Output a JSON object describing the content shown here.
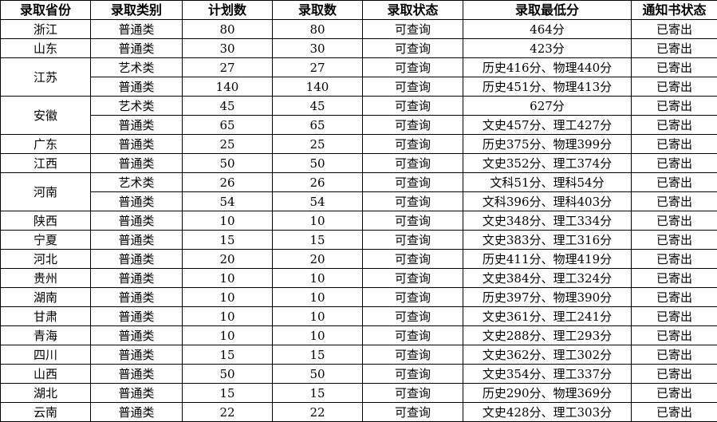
{
  "headers": [
    "录取省份",
    "录取类别",
    "计划数",
    "录取数",
    "录取状态",
    "录取最低分",
    "通知书状态"
  ],
  "groups": [
    {
      "province": "浙江",
      "rows": [
        [
          "普通类",
          "80",
          "80",
          "可查询",
          "464分",
          "已寄出"
        ]
      ]
    },
    {
      "province": "山东",
      "rows": [
        [
          "普通类",
          "30",
          "30",
          "可查询",
          "423分",
          "已寄出"
        ]
      ]
    },
    {
      "province": "江苏",
      "rows": [
        [
          "艺术类",
          "27",
          "27",
          "可查询",
          "历史416分、物理440分",
          "已寄出"
        ],
        [
          "普通类",
          "140",
          "140",
          "可查询",
          "历史451分、物理413分",
          "已寄出"
        ]
      ]
    },
    {
      "province": "安徽",
      "rows": [
        [
          "艺术类",
          "45",
          "45",
          "可查询",
          "627分",
          "已寄出"
        ],
        [
          "普通类",
          "65",
          "65",
          "可查询",
          "文史457分、理工427分",
          "已寄出"
        ]
      ]
    },
    {
      "province": "广东",
      "rows": [
        [
          "普通类",
          "25",
          "25",
          "可查询",
          "历史375分、物理399分",
          "已寄出"
        ]
      ]
    },
    {
      "province": "江西",
      "rows": [
        [
          "普通类",
          "50",
          "50",
          "可查询",
          "文史352分、理工374分",
          "已寄出"
        ]
      ]
    },
    {
      "province": "河南",
      "rows": [
        [
          "艺术类",
          "26",
          "26",
          "可查询",
          "文科51分、理科54分",
          "已寄出"
        ],
        [
          "普通类",
          "54",
          "54",
          "可查询",
          "文科396分、理科403分",
          "已寄出"
        ]
      ]
    },
    {
      "province": "陕西",
      "rows": [
        [
          "普通类",
          "10",
          "10",
          "可查询",
          "文史348分、理工334分",
          "已寄出"
        ]
      ]
    },
    {
      "province": "宁夏",
      "rows": [
        [
          "普通类",
          "15",
          "15",
          "可查询",
          "文史383分、理工316分",
          "已寄出"
        ]
      ]
    },
    {
      "province": "河北",
      "rows": [
        [
          "普通类",
          "20",
          "20",
          "可查询",
          "历史411分、物理419分",
          "已寄出"
        ]
      ]
    },
    {
      "province": "贵州",
      "rows": [
        [
          "普通类",
          "10",
          "10",
          "可查询",
          "文史384分、理工324分",
          "已寄出"
        ]
      ]
    },
    {
      "province": "湖南",
      "rows": [
        [
          "普通类",
          "10",
          "10",
          "可查询",
          "历史397分、物理390分",
          "已寄出"
        ]
      ]
    },
    {
      "province": "甘肃",
      "rows": [
        [
          "普通类",
          "10",
          "10",
          "可查询",
          "文史361分、理工241分",
          "已寄出"
        ]
      ]
    },
    {
      "province": "青海",
      "rows": [
        [
          "普通类",
          "10",
          "10",
          "可查询",
          "文史288分、理工293分",
          "已寄出"
        ]
      ]
    },
    {
      "province": "四川",
      "rows": [
        [
          "普通类",
          "15",
          "15",
          "可查询",
          "文史362分、理工302分",
          "已寄出"
        ]
      ]
    },
    {
      "province": "山西",
      "rows": [
        [
          "普通类",
          "50",
          "50",
          "可查询",
          "文史354分、理工337分",
          "已寄出"
        ]
      ]
    },
    {
      "province": "湖北",
      "rows": [
        [
          "普通类",
          "15",
          "15",
          "可查询",
          "历史290分、物理369分",
          "已寄出"
        ]
      ]
    },
    {
      "province": "云南",
      "rows": [
        [
          "普通类",
          "22",
          "22",
          "可查询",
          "文史428分、理工303分",
          "已寄出"
        ]
      ]
    }
  ]
}
